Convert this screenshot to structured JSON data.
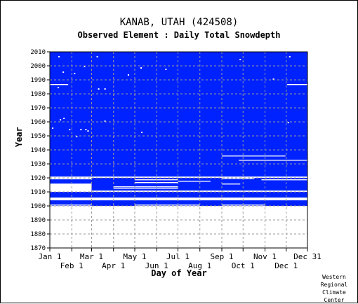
{
  "chart_data": {
    "type": "heatmap",
    "title": "KANAB, UTAH   (424508)",
    "subtitle": "Observed Element : Daily Total Snowdepth",
    "xlabel": "Day of Year",
    "ylabel": "Year",
    "credit": [
      "Western",
      "Regional",
      "Climate",
      "Center"
    ],
    "colors": {
      "data": "#0022ff",
      "grid": "#999999",
      "background": "#ffffff"
    },
    "xlim": [
      1,
      365
    ],
    "ylim": [
      1870,
      2010
    ],
    "yticks": [
      1870,
      1880,
      1890,
      1900,
      1910,
      1920,
      1930,
      1940,
      1950,
      1960,
      1970,
      1980,
      1990,
      2000,
      2010
    ],
    "xticks_top": [
      {
        "label": "Jan 1",
        "day": 1
      },
      {
        "label": "Mar 1",
        "day": 60
      },
      {
        "label": "May 1",
        "day": 121
      },
      {
        "label": "Jul 1",
        "day": 182
      },
      {
        "label": "Sep 1",
        "day": 244
      },
      {
        "label": "Nov 1",
        "day": 305
      },
      {
        "label": "Dec 31",
        "day": 365
      }
    ],
    "xticks_bottom": [
      {
        "label": "Feb 1",
        "day": 32
      },
      {
        "label": "Apr 1",
        "day": 91
      },
      {
        "label": "Jun 1",
        "day": 152
      },
      {
        "label": "Aug 1",
        "day": 213
      },
      {
        "label": "Oct 1",
        "day": 274
      },
      {
        "label": "Dec 1",
        "day": 335
      }
    ],
    "record_blocks": [
      {
        "year_start": 1921,
        "year_end": 2010,
        "day_start": 1,
        "day_end": 365
      },
      {
        "year_start": 1906,
        "year_end": 1910,
        "day_start": 1,
        "day_end": 365
      },
      {
        "year_start": 1902,
        "year_end": 1904,
        "day_start": 1,
        "day_end": 365
      },
      {
        "year_start": 1900,
        "year_end": 1902,
        "day_start": 1,
        "day_end": 365
      },
      {
        "year_start": 1911,
        "year_end": 1920,
        "day_start": 60,
        "day_end": 365
      },
      {
        "year_start": 1916,
        "year_end": 1919,
        "day_start": 1,
        "day_end": 60
      }
    ],
    "missing_runs": [
      {
        "year": 1986,
        "day_start": 1,
        "day_end": 27
      },
      {
        "year": 1986,
        "day_start": 336,
        "day_end": 365
      },
      {
        "year": 1935,
        "day_start": 244,
        "day_end": 334
      },
      {
        "year": 1932,
        "day_start": 268,
        "day_end": 365
      },
      {
        "year": 1918,
        "day_start": 121,
        "day_end": 182
      },
      {
        "year": 1917,
        "day_start": 182,
        "day_end": 228
      },
      {
        "year": 1916,
        "day_start": 121,
        "day_end": 182
      },
      {
        "year": 1915,
        "day_start": 244,
        "day_end": 270
      },
      {
        "year": 1913,
        "day_start": 91,
        "day_end": 182
      },
      {
        "year": 1912,
        "day_start": 91,
        "day_end": 182
      },
      {
        "year": 1920,
        "day_start": 244,
        "day_end": 365
      },
      {
        "year": 1919,
        "day_start": 244,
        "day_end": 290
      },
      {
        "year": 1918,
        "day_start": 300,
        "day_end": 365
      },
      {
        "year": 1911,
        "day_start": 1,
        "day_end": 60
      },
      {
        "year": 1910,
        "day_start": 1,
        "day_end": 365
      },
      {
        "year": 1905,
        "day_start": 1,
        "day_end": 365
      },
      {
        "year": 1904,
        "day_start": 143,
        "day_end": 158
      },
      {
        "year": 1900,
        "day_start": 1,
        "day_end": 60
      },
      {
        "year": 1900,
        "day_start": 121,
        "day_end": 213
      },
      {
        "year": 1900,
        "day_start": 244,
        "day_end": 305
      },
      {
        "year": 1899,
        "day_start": 330,
        "day_end": 365
      }
    ],
    "missing_days": [
      {
        "year": 2006,
        "day": 14
      },
      {
        "year": 2006,
        "day": 68
      },
      {
        "year": 2006,
        "day": 340
      },
      {
        "year": 2004,
        "day": 270
      },
      {
        "year": 1999,
        "day": 50
      },
      {
        "year": 1998,
        "day": 130
      },
      {
        "year": 1997,
        "day": 165
      },
      {
        "year": 1995,
        "day": 20
      },
      {
        "year": 1994,
        "day": 36
      },
      {
        "year": 1993,
        "day": 112
      },
      {
        "year": 1990,
        "day": 317
      },
      {
        "year": 1984,
        "day": 13
      },
      {
        "year": 1983,
        "day": 70
      },
      {
        "year": 1983,
        "day": 79
      },
      {
        "year": 1962,
        "day": 21
      },
      {
        "year": 1961,
        "day": 16
      },
      {
        "year": 1960,
        "day": 79
      },
      {
        "year": 1959,
        "day": 338
      },
      {
        "year": 1955,
        "day": 5
      },
      {
        "year": 1954,
        "day": 29
      },
      {
        "year": 1954,
        "day": 45
      },
      {
        "year": 1954,
        "day": 52
      },
      {
        "year": 1953,
        "day": 55
      },
      {
        "year": 1952,
        "day": 131
      },
      {
        "year": 1949,
        "day": 39
      }
    ]
  }
}
